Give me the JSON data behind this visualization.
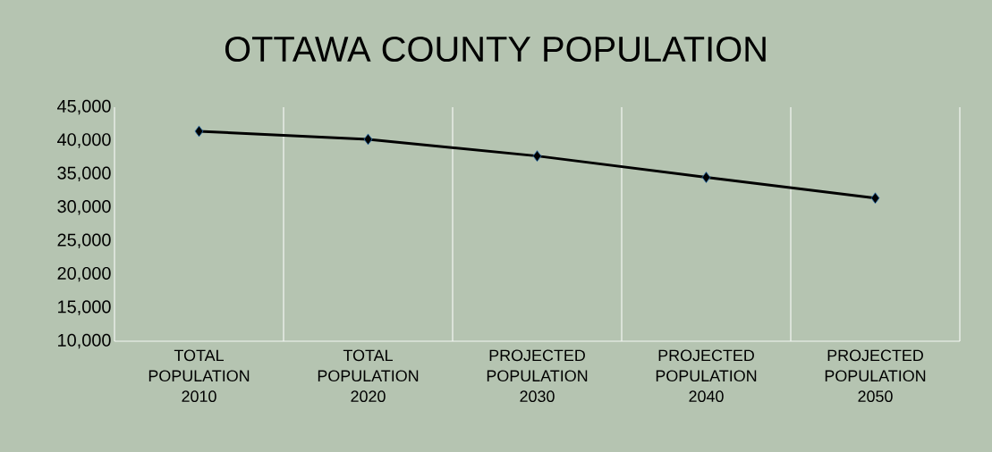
{
  "chart_data": {
    "type": "line",
    "title": "OTTAWA COUNTY POPULATION",
    "categories": [
      "TOTAL POPULATION 2010",
      "TOTAL POPULATION 2020",
      "PROJECTED POPULATION 2030",
      "PROJECTED POPULATION 2040",
      "PROJECTED POPULATION 2050"
    ],
    "values": [
      41400,
      40200,
      37700,
      34500,
      31400
    ],
    "color": "#000000",
    "marker": "diamond",
    "line_style": "solid",
    "grid": "x",
    "ylim": [
      10000,
      45000
    ],
    "yticks": [
      {
        "value": 10000,
        "label": "10,000"
      },
      {
        "value": 15000,
        "label": "15,000"
      },
      {
        "value": 20000,
        "label": "20,000"
      },
      {
        "value": 25000,
        "label": "25,000"
      },
      {
        "value": 30000,
        "label": "30,000"
      },
      {
        "value": 35000,
        "label": "35,000"
      },
      {
        "value": 40000,
        "label": "40,000"
      },
      {
        "value": 45000,
        "label": "45,000"
      }
    ]
  }
}
